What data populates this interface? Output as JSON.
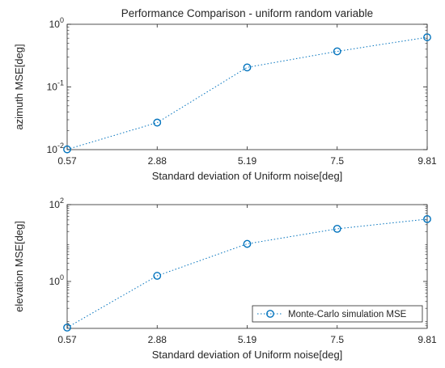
{
  "chart_data": [
    {
      "type": "line",
      "title": "Performance Comparison  - uniform random variable",
      "xlabel": "Standard deviation of Uniform noise[deg]",
      "ylabel": "azimuth MSE[deg]",
      "yscale": "log",
      "x": [
        0.57,
        2.88,
        5.19,
        7.5,
        9.81
      ],
      "x_tick_labels": [
        "0.57",
        "2.88",
        "5.19",
        "7.5",
        "9.81"
      ],
      "xlim": [
        0.57,
        9.81
      ],
      "ylim": [
        0.01,
        1
      ],
      "y_ticks": [
        {
          "value": 0.01,
          "base": "10",
          "exp": "-2"
        },
        {
          "value": 0.1,
          "base": "10",
          "exp": "-1"
        },
        {
          "value": 1,
          "base": "10",
          "exp": "0"
        }
      ],
      "series": [
        {
          "values": [
            0.0101,
            0.027,
            0.205,
            0.37,
            0.62
          ],
          "color": "#0072BD",
          "line_style": "dotted",
          "marker": "circle"
        }
      ],
      "grid": false,
      "legend": null
    },
    {
      "type": "line",
      "title": "",
      "xlabel": "Standard deviation of Uniform noise[deg]",
      "ylabel": "elevation MSE[deg]",
      "yscale": "log",
      "x": [
        0.57,
        2.88,
        5.19,
        7.5,
        9.81
      ],
      "x_tick_labels": [
        "0.57",
        "2.88",
        "5.19",
        "7.5",
        "9.81"
      ],
      "xlim": [
        0.57,
        9.81
      ],
      "ylim": [
        0.06,
        100
      ],
      "y_ticks": [
        {
          "value": 1,
          "base": "10",
          "exp": "0"
        },
        {
          "value": 100,
          "base": "10",
          "exp": "2"
        }
      ],
      "series": [
        {
          "name": "Monte-Carlo simulation MSE",
          "values": [
            0.063,
            1.4,
            9.5,
            23.5,
            42
          ],
          "color": "#0072BD",
          "line_style": "dotted",
          "marker": "circle"
        }
      ],
      "grid": false,
      "legend": "bottom-right"
    }
  ]
}
